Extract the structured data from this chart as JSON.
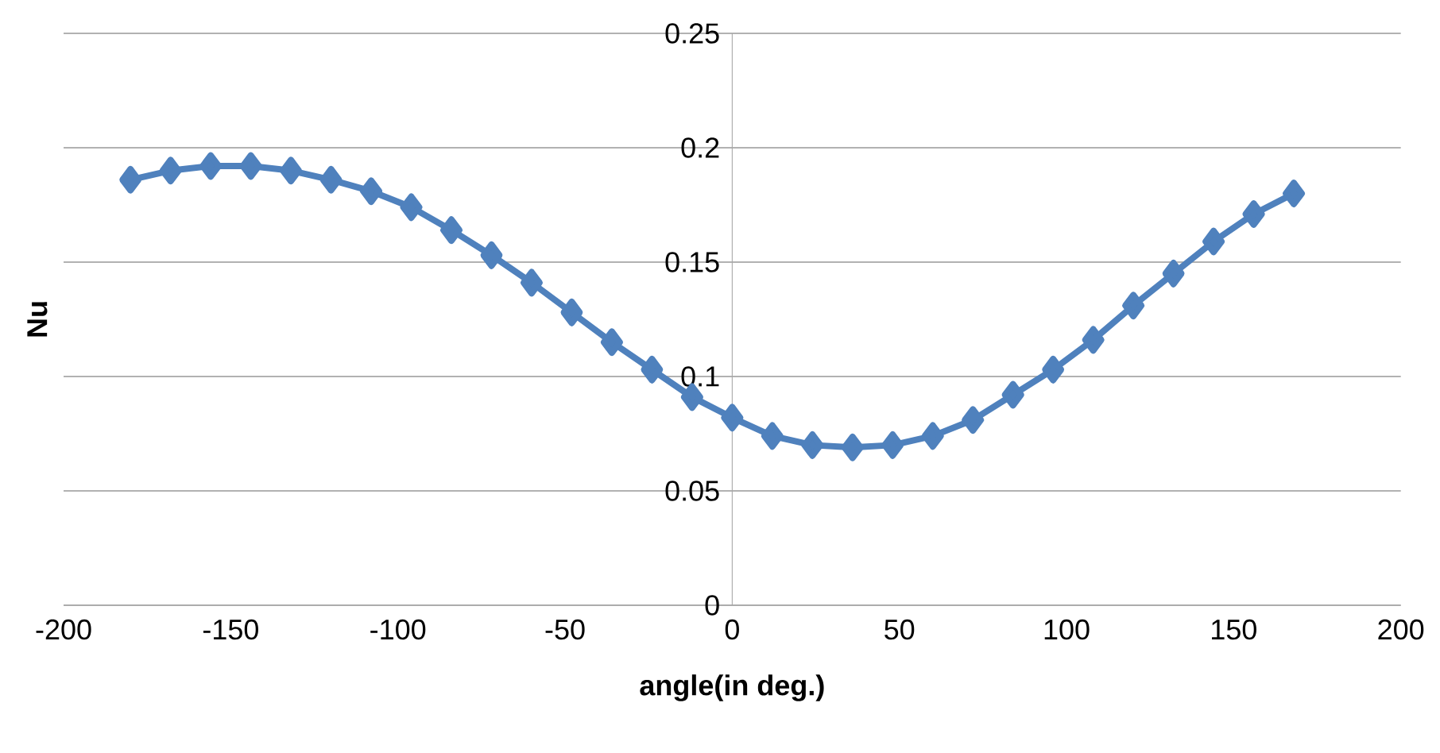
{
  "chart_data": {
    "type": "line",
    "xlabel": "angle(in deg.)",
    "ylabel": "Nu",
    "x": [
      -180,
      -168,
      -156,
      -144,
      -132,
      -120,
      -108,
      -96,
      -84,
      -72,
      -60,
      -48,
      -36,
      -24,
      -12,
      0,
      12,
      24,
      36,
      48,
      60,
      72,
      84,
      96,
      108,
      120,
      132,
      144,
      156,
      168
    ],
    "series": [
      {
        "color": "#4f81bd",
        "values": [
          0.186,
          0.19,
          0.192,
          0.192,
          0.19,
          0.186,
          0.181,
          0.174,
          0.164,
          0.153,
          0.141,
          0.128,
          0.115,
          0.103,
          0.091,
          0.082,
          0.074,
          0.07,
          0.069,
          0.07,
          0.074,
          0.081,
          0.092,
          0.103,
          0.116,
          0.131,
          0.145,
          0.159,
          0.171,
          0.18
        ]
      }
    ],
    "xlim": [
      -200,
      200
    ],
    "ylim": [
      0,
      0.25
    ],
    "xticks": [
      -200,
      -150,
      -100,
      -50,
      0,
      50,
      100,
      150,
      200
    ],
    "yticks": [
      0,
      0.05,
      0.1,
      0.15,
      0.2,
      0.25
    ],
    "grid": "y",
    "marker": "diamond",
    "line_style": "solid"
  }
}
